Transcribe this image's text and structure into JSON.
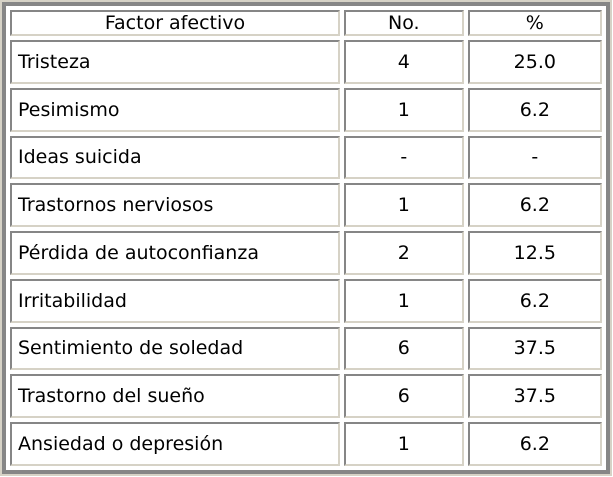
{
  "chart_data": {
    "type": "table",
    "title": "",
    "columns": [
      "Factor afectivo",
      "No.",
      "%"
    ],
    "rows": [
      {
        "factor": "Tristeza",
        "no": "4",
        "pct": "25.0"
      },
      {
        "factor": "Pesimismo",
        "no": "1",
        "pct": "6.2"
      },
      {
        "factor": "Ideas suicida",
        "no": "-",
        "pct": "-"
      },
      {
        "factor": "Trastornos nerviosos",
        "no": "1",
        "pct": "6.2"
      },
      {
        "factor": "Pérdida de autoconfianza",
        "no": "2",
        "pct": "12.5"
      },
      {
        "factor": "Irritabilidad",
        "no": "1",
        "pct": "6.2"
      },
      {
        "factor": "Sentimiento de soledad",
        "no": "6",
        "pct": "37.5"
      },
      {
        "factor": "Trastorno del sueño",
        "no": "6",
        "pct": "37.5"
      },
      {
        "factor": "Ansiedad o depresión",
        "no": "1",
        "pct": "6.2"
      }
    ]
  },
  "header": {
    "factor": "Factor afectivo",
    "no": "No.",
    "pct": "%"
  },
  "colors": {
    "border_dark": "#868686",
    "border_light": "#d6d2c6",
    "cell_background": "#ffffff",
    "page_background": "#ffffff",
    "text": "#000000"
  }
}
